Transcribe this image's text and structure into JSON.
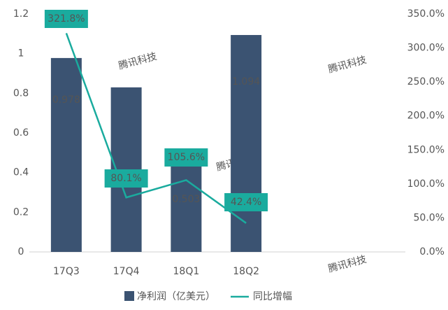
{
  "chart_data": {
    "type": "bar-line",
    "categories": [
      "17Q3",
      "17Q4",
      "18Q1",
      "18Q2"
    ],
    "series": [
      {
        "name": "净利润（亿美元）",
        "type": "bar",
        "color": "#3b5372",
        "values": [
          0.978,
          0.83,
          0.503,
          1.094
        ]
      },
      {
        "name": "同比增幅",
        "type": "line",
        "axis": "y2",
        "color": "#1aab9e",
        "values": [
          321.8,
          80.1,
          105.6,
          42.4
        ],
        "value_labels": [
          "321.8%",
          "80.1%",
          "105.6%",
          "42.4%"
        ]
      }
    ],
    "ylim": [
      0,
      1.2
    ],
    "yticks": [
      0,
      0.2,
      0.4,
      0.6,
      0.8,
      1,
      1.2
    ],
    "y2lim": [
      0,
      350
    ],
    "y2ticks": [
      {
        "value": 0,
        "label": "0.0%"
      },
      {
        "value": 50,
        "label": "50.0%"
      },
      {
        "value": 100,
        "label": "100.0%"
      },
      {
        "value": 150,
        "label": "150.0%"
      },
      {
        "value": 200,
        "label": "200.0%"
      },
      {
        "value": 250,
        "label": "250.0%"
      },
      {
        "value": 300,
        "label": "300.0%"
      },
      {
        "value": 350,
        "label": "350.0%"
      }
    ],
    "grid": false,
    "legend": "bottom",
    "watermark": "腾讯科技"
  }
}
